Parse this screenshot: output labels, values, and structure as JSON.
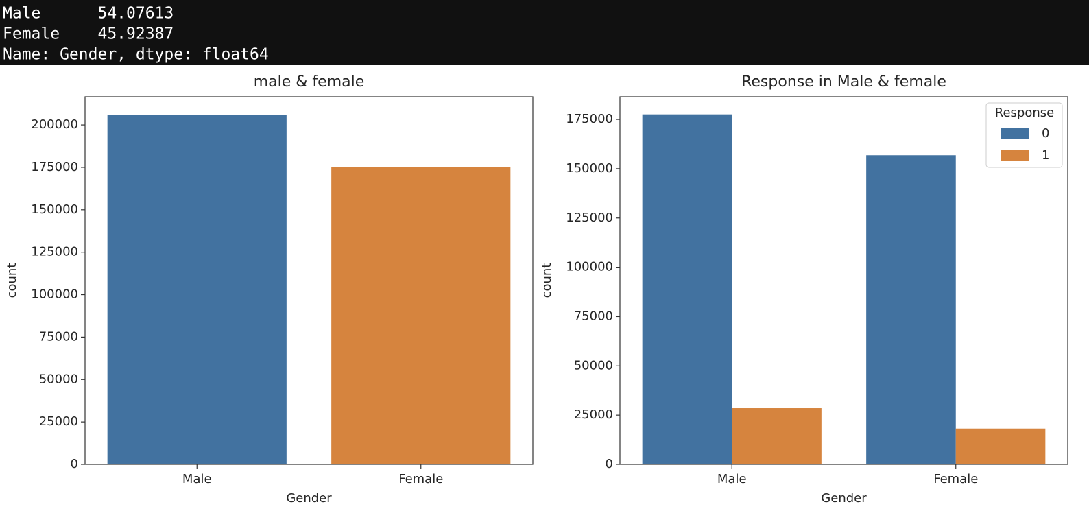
{
  "output_text": [
    "Male      54.07613",
    "Female    45.92387",
    "Name: Gender, dtype: float64"
  ],
  "chart_data": [
    {
      "type": "bar",
      "title": "male & female",
      "x_label": "Gender",
      "y_label": "count",
      "categories": [
        "Male",
        "Female"
      ],
      "values": [
        206089,
        175020
      ],
      "colors": [
        "#4272a0",
        "#d6843e"
      ],
      "ylim": [
        0,
        216600
      ],
      "yticks": [
        0,
        25000,
        50000,
        75000,
        100000,
        125000,
        150000,
        175000,
        200000
      ]
    },
    {
      "type": "bar",
      "title": "Response in Male & female",
      "x_label": "Gender",
      "y_label": "count",
      "categories": [
        "Male",
        "Female"
      ],
      "series": [
        {
          "name": "0",
          "color": "#4272a0",
          "values": [
            177564,
            156835
          ]
        },
        {
          "name": "1",
          "color": "#d6843e",
          "values": [
            28525,
            18185
          ]
        }
      ],
      "legend_title": "Response",
      "legend": "upper right",
      "ylim": [
        0,
        186500
      ],
      "yticks": [
        0,
        25000,
        50000,
        75000,
        100000,
        125000,
        150000,
        175000
      ]
    }
  ]
}
